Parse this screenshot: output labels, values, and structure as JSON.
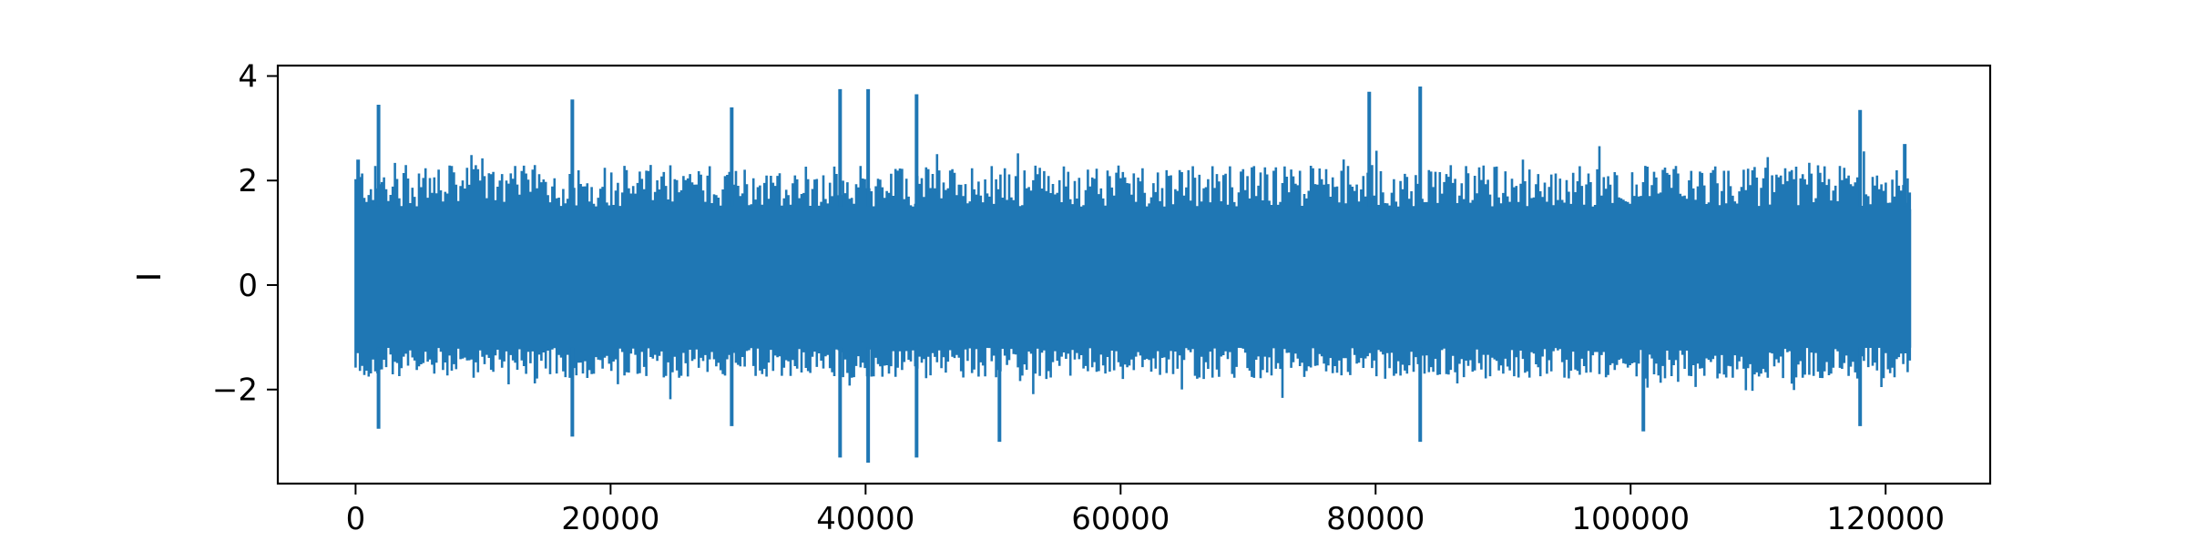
{
  "chart_data": {
    "type": "line",
    "title": "",
    "xlabel": "",
    "ylabel": "I",
    "xlim": [
      -6100,
      128200
    ],
    "ylim": [
      -3.8,
      4.2
    ],
    "x_ticks": [
      0,
      20000,
      40000,
      60000,
      80000,
      100000,
      120000
    ],
    "x_tick_labels": [
      "0",
      "20000",
      "40000",
      "60000",
      "80000",
      "100000",
      "120000"
    ],
    "y_ticks": [
      -2,
      0,
      2,
      4
    ],
    "y_tick_labels": [
      "−2",
      "0",
      "2",
      "4"
    ],
    "grid": false,
    "legend": "none",
    "series": [
      {
        "color": "#1f77b4",
        "x_range": [
          0,
          122000
        ],
        "summary": {
          "typical_upper": 2.3,
          "typical_lower": -1.8,
          "max": 3.8,
          "min": -3.4
        },
        "peaks": [
          {
            "x": 200,
            "y": 2.4
          },
          {
            "x": 1800,
            "y": 3.45
          },
          {
            "x": 17000,
            "y": 3.55
          },
          {
            "x": 29500,
            "y": 3.4
          },
          {
            "x": 38000,
            "y": 3.75
          },
          {
            "x": 40200,
            "y": 3.75
          },
          {
            "x": 44000,
            "y": 3.65
          },
          {
            "x": 79500,
            "y": 3.7
          },
          {
            "x": 83500,
            "y": 3.8
          },
          {
            "x": 118000,
            "y": 3.35
          },
          {
            "x": 121500,
            "y": 2.7
          }
        ],
        "troughs": [
          {
            "x": 1800,
            "y": -2.75
          },
          {
            "x": 17000,
            "y": -2.9
          },
          {
            "x": 29500,
            "y": -2.7
          },
          {
            "x": 38000,
            "y": -3.3
          },
          {
            "x": 40200,
            "y": -3.4
          },
          {
            "x": 44000,
            "y": -3.3
          },
          {
            "x": 50500,
            "y": -3.0
          },
          {
            "x": 83500,
            "y": -3.0
          },
          {
            "x": 101000,
            "y": -2.8
          },
          {
            "x": 118000,
            "y": -2.7
          }
        ]
      }
    ]
  }
}
